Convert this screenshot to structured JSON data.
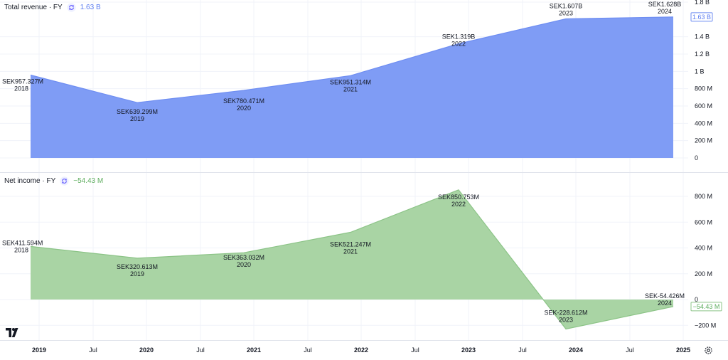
{
  "legend_top": {
    "title": "Total revenue · FY",
    "value": "1.63 B",
    "icon": "sync-icon",
    "color": "#5b7cf0"
  },
  "legend_bottom": {
    "title": "Net income · FY",
    "value": "−54.43 M",
    "icon": "sync-icon",
    "color": "#5fae5f"
  },
  "colors": {
    "revenue_fill": "#7f9cf5",
    "revenue_line": "#6f8ef2",
    "income_fill": "#a9d4a4",
    "income_line": "#8cc487",
    "grid": "#f0f3fa"
  },
  "chart_data": [
    {
      "type": "area",
      "title": "Total revenue · FY",
      "x": [
        2018,
        2019,
        2020,
        2021,
        2022,
        2023,
        2024
      ],
      "values_millions": [
        957.327,
        639.299,
        780.471,
        951.314,
        1319,
        1607,
        1628
      ],
      "point_labels": [
        "SEK957.327M",
        "SEK639.299M",
        "SEK780.471M",
        "SEK951.314M",
        "SEK1.319B",
        "SEK1.607B",
        "SEK1.628B"
      ],
      "period_labels": [
        "2018",
        "2019",
        "2020",
        "2021",
        "2022",
        "2023",
        "2024"
      ],
      "y_ticks": [
        0,
        200,
        400,
        600,
        800,
        1000,
        1200,
        1400,
        1800
      ],
      "y_tick_labels": [
        "0",
        "200 M",
        "400 M",
        "600 M",
        "800 M",
        "1 B",
        "1.2 B",
        "1.4 B",
        "1.8 B"
      ],
      "ylim_millions": [
        0,
        1800
      ],
      "last_value_label": "1.63 B",
      "grid": true
    },
    {
      "type": "area",
      "title": "Net income · FY",
      "x": [
        2018,
        2019,
        2020,
        2021,
        2022,
        2023,
        2024
      ],
      "values_millions": [
        411.594,
        320.613,
        363.032,
        521.247,
        850.753,
        -228.612,
        -54.426
      ],
      "point_labels": [
        "SEK411.594M",
        "SEK320.613M",
        "SEK363.032M",
        "SEK521.247M",
        "SEK850.753M",
        "SEK-228.612M",
        "SEK-54.426M"
      ],
      "period_labels": [
        "2018",
        "2019",
        "2020",
        "2021",
        "2022",
        "2023",
        "2024"
      ],
      "y_ticks": [
        800,
        600,
        400,
        200,
        0,
        -200
      ],
      "y_tick_labels": [
        "800 M",
        "600 M",
        "400 M",
        "200 M",
        "0",
        "−200 M"
      ],
      "last_value_label": "−54.43 M",
      "grid": true
    }
  ],
  "x_axis": {
    "ticks": [
      "2019",
      "Jul",
      "2020",
      "Jul",
      "2021",
      "Jul",
      "2022",
      "Jul",
      "2023",
      "Jul",
      "2024",
      "Jul",
      "2025"
    ],
    "bold": [
      true,
      false,
      true,
      false,
      true,
      false,
      true,
      false,
      true,
      false,
      true,
      false,
      true
    ]
  }
}
